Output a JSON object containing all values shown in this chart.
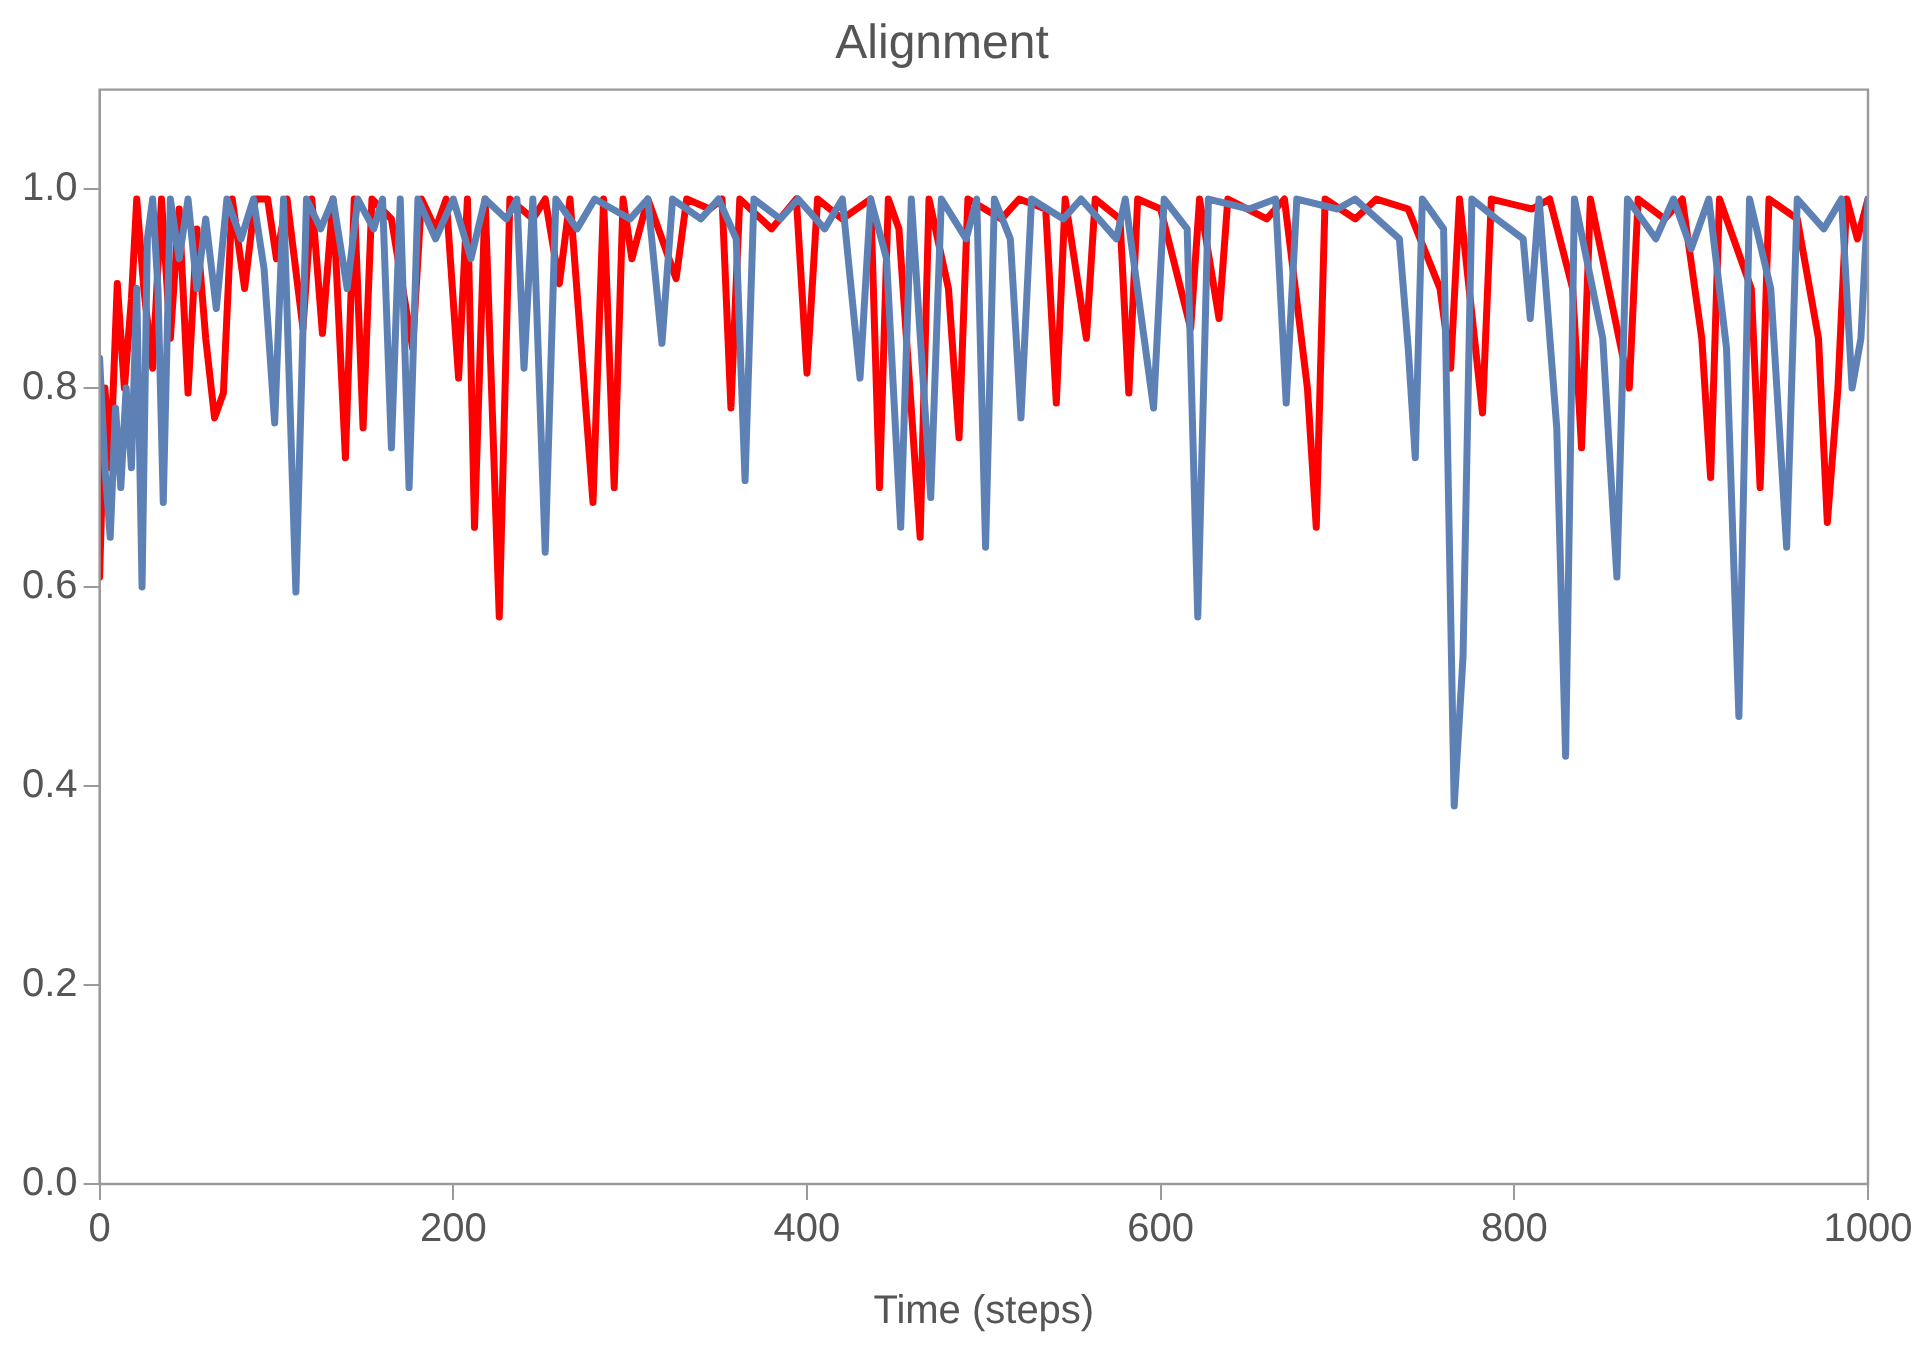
{
  "chart_data": {
    "type": "line",
    "title": "Alignment",
    "xlabel": "Time (steps)",
    "xlim": [
      0,
      1000
    ],
    "xticks": [
      0,
      200,
      400,
      600,
      800,
      1000
    ],
    "ylim": [
      0,
      1.1
    ],
    "yticks": [
      {
        "value": 0,
        "label": "0.0"
      },
      0.2,
      0.4,
      0.6,
      0.8,
      {
        "value": 1,
        "label": "1.0"
      }
    ],
    "grid": false,
    "legend": false,
    "marker": "none",
    "line_style": "solid",
    "series": [
      {
        "color": "#5e81b5",
        "x": [
          0,
          3,
          6,
          9,
          12,
          15,
          18,
          21,
          24,
          27,
          30,
          33,
          36,
          40,
          45,
          50,
          55,
          60,
          66,
          72,
          80,
          87,
          93,
          99,
          104,
          111,
          117,
          125,
          132,
          140,
          146,
          155,
          160,
          165,
          170,
          175,
          180,
          190,
          200,
          210,
          218,
          230,
          236,
          240,
          245,
          252,
          258,
          270,
          280,
          300,
          310,
          318,
          324,
          340,
          350,
          360,
          365,
          370,
          385,
          395,
          410,
          420,
          430,
          436,
          445,
          453,
          459,
          470,
          476,
          490,
          496,
          501,
          506,
          515,
          521,
          527,
          545,
          555,
          575,
          580,
          596,
          602,
          615,
          621,
          627,
          650,
          665,
          671,
          677,
          700,
          710,
          735,
          740,
          744,
          748,
          760,
          766,
          771,
          776,
          790,
          805,
          809,
          814,
          824,
          829,
          834,
          850,
          858,
          864,
          880,
          890,
          900,
          910,
          920,
          927,
          933,
          945,
          954,
          960,
          975,
          985,
          991,
          996,
          1000
        ],
        "values": [
          0.83,
          0.72,
          0.65,
          0.78,
          0.7,
          0.8,
          0.72,
          0.9,
          0.6,
          0.95,
          0.99,
          0.9,
          0.685,
          0.99,
          0.93,
          0.99,
          0.9,
          0.97,
          0.88,
          0.99,
          0.95,
          0.99,
          0.92,
          0.765,
          0.99,
          0.595,
          0.99,
          0.96,
          0.99,
          0.9,
          0.99,
          0.96,
          0.99,
          0.74,
          0.99,
          0.7,
          0.99,
          0.95,
          0.99,
          0.93,
          0.99,
          0.97,
          0.99,
          0.82,
          0.99,
          0.635,
          0.99,
          0.96,
          0.99,
          0.97,
          0.99,
          0.845,
          0.99,
          0.97,
          0.99,
          0.95,
          0.707,
          0.99,
          0.97,
          0.99,
          0.96,
          0.99,
          0.81,
          0.99,
          0.93,
          0.66,
          0.99,
          0.69,
          0.99,
          0.95,
          0.99,
          0.64,
          0.99,
          0.95,
          0.77,
          0.99,
          0.97,
          0.99,
          0.95,
          0.99,
          0.78,
          0.99,
          0.96,
          0.57,
          0.99,
          0.98,
          0.99,
          0.785,
          0.99,
          0.98,
          0.99,
          0.95,
          0.84,
          0.73,
          0.99,
          0.96,
          0.38,
          0.53,
          0.99,
          0.97,
          0.95,
          0.87,
          0.99,
          0.76,
          0.43,
          0.99,
          0.85,
          0.61,
          0.99,
          0.95,
          0.99,
          0.94,
          0.99,
          0.84,
          0.47,
          0.99,
          0.9,
          0.64,
          0.99,
          0.96,
          0.99,
          0.8,
          0.85,
          0.99
        ]
      },
      {
        "color": "#ff0000",
        "x": [
          0,
          3,
          6,
          10,
          14,
          18,
          21,
          25,
          30,
          35,
          40,
          45,
          50,
          55,
          60,
          65,
          70,
          75,
          82,
          88,
          95,
          100,
          106,
          115,
          120,
          126,
          132,
          139,
          144,
          149,
          154,
          165,
          177,
          182,
          190,
          196,
          203,
          208,
          212,
          218,
          226,
          232,
          245,
          252,
          260,
          266,
          279,
          285,
          291,
          296,
          301,
          310,
          326,
          332,
          345,
          352,
          357,
          362,
          380,
          394,
          400,
          406,
          420,
          436,
          441,
          446,
          452,
          464,
          469,
          480,
          486,
          491,
          510,
          520,
          535,
          541,
          546,
          558,
          563,
          577,
          582,
          587,
          600,
          617,
          622,
          633,
          638,
          660,
          670,
          683,
          688,
          693,
          710,
          722,
          740,
          758,
          764,
          769,
          782,
          787,
          810,
          820,
          833,
          838,
          843,
          865,
          870,
          885,
          895,
          906,
          911,
          916,
          934,
          939,
          944,
          960,
          972,
          977,
          983,
          988,
          994,
          1000
        ],
        "values": [
          0.61,
          0.8,
          0.72,
          0.905,
          0.8,
          0.89,
          0.99,
          0.9,
          0.82,
          0.99,
          0.85,
          0.98,
          0.795,
          0.96,
          0.85,
          0.77,
          0.795,
          0.99,
          0.9,
          0.99,
          0.99,
          0.93,
          0.99,
          0.86,
          0.99,
          0.855,
          0.99,
          0.73,
          0.99,
          0.76,
          0.99,
          0.97,
          0.84,
          0.99,
          0.96,
          0.99,
          0.81,
          0.99,
          0.66,
          0.99,
          0.57,
          0.99,
          0.97,
          0.99,
          0.905,
          0.99,
          0.685,
          0.99,
          0.7,
          0.99,
          0.93,
          0.99,
          0.91,
          0.99,
          0.98,
          0.99,
          0.78,
          0.99,
          0.96,
          0.99,
          0.815,
          0.99,
          0.97,
          0.99,
          0.7,
          0.99,
          0.96,
          0.65,
          0.99,
          0.9,
          0.75,
          0.99,
          0.97,
          0.99,
          0.98,
          0.785,
          0.99,
          0.85,
          0.99,
          0.97,
          0.795,
          0.99,
          0.98,
          0.86,
          0.99,
          0.87,
          0.99,
          0.97,
          0.99,
          0.8,
          0.66,
          0.99,
          0.97,
          0.99,
          0.98,
          0.9,
          0.82,
          0.99,
          0.775,
          0.99,
          0.98,
          0.99,
          0.9,
          0.74,
          0.99,
          0.8,
          0.99,
          0.97,
          0.99,
          0.85,
          0.71,
          0.99,
          0.9,
          0.7,
          0.99,
          0.97,
          0.85,
          0.665,
          0.8,
          0.99,
          0.95,
          0.99
        ]
      }
    ]
  }
}
